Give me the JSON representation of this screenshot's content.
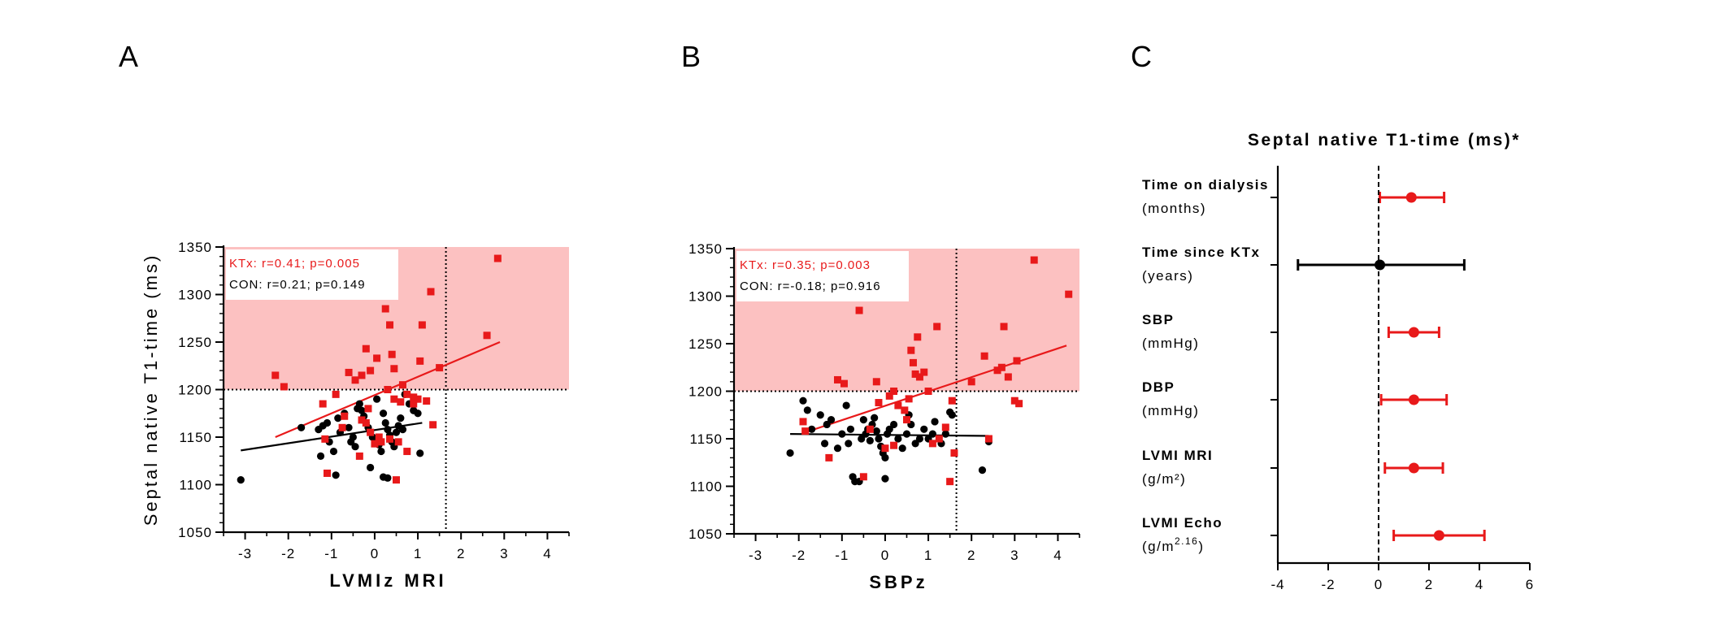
{
  "colors": {
    "ktx": "#e8191a",
    "con": "#000000",
    "shade": "#fcc1c1",
    "axis": "#000000"
  },
  "panels": {
    "a": "A",
    "b": "B",
    "c": "C"
  },
  "chart_data": [
    {
      "id": "A",
      "type": "scatter",
      "xlabel": "LVMIz MRI",
      "ylabel": "Septal native T1-time (ms)",
      "xlim": [
        -3.5,
        4.5
      ],
      "ylim": [
        1050,
        1350
      ],
      "xticks": [
        "-3",
        "-2",
        "-1",
        "0",
        "1",
        "2",
        "3",
        "4"
      ],
      "yticks": [
        "1050",
        "1100",
        "1150",
        "1200",
        "1250",
        "1300",
        "1350"
      ],
      "shaded_region": {
        "y_from": 1200,
        "y_to": 1350
      },
      "threshold_y": 1200,
      "threshold_x": 1.65,
      "legend": {
        "ktx": "KTx:   r=0.41; p=0.005",
        "con": "CON: r=0.21; p=0.149"
      },
      "series": [
        {
          "name": "KTx",
          "marker": "square",
          "points": [
            [
              -2.3,
              1215
            ],
            [
              -2.1,
              1203
            ],
            [
              -1.2,
              1185
            ],
            [
              -0.9,
              1195
            ],
            [
              -1.1,
              1112
            ],
            [
              -0.6,
              1218
            ],
            [
              -0.45,
              1210
            ],
            [
              -0.3,
              1215
            ],
            [
              -0.2,
              1243
            ],
            [
              -0.1,
              1220
            ],
            [
              0.05,
              1233
            ],
            [
              0.25,
              1285
            ],
            [
              0.35,
              1268
            ],
            [
              0.4,
              1237
            ],
            [
              0.45,
              1222
            ],
            [
              0.3,
              1200
            ],
            [
              0.45,
              1190
            ],
            [
              0.6,
              1187
            ],
            [
              0.65,
              1205
            ],
            [
              0.75,
              1195
            ],
            [
              0.9,
              1192
            ],
            [
              1.0,
              1190
            ],
            [
              1.05,
              1230
            ],
            [
              1.1,
              1268
            ],
            [
              1.3,
              1303
            ],
            [
              1.2,
              1188
            ],
            [
              1.5,
              1223
            ],
            [
              1.35,
              1163
            ],
            [
              2.6,
              1257
            ],
            [
              2.85,
              1338
            ],
            [
              -0.2,
              1165
            ],
            [
              -0.15,
              1180
            ],
            [
              0.1,
              1150
            ],
            [
              0.15,
              1145
            ],
            [
              0.35,
              1148
            ],
            [
              0.55,
              1145
            ],
            [
              0.75,
              1135
            ],
            [
              0.5,
              1105
            ],
            [
              -0.35,
              1130
            ],
            [
              -0.3,
              1168
            ],
            [
              -0.1,
              1155
            ],
            [
              0.0,
              1143
            ],
            [
              -0.7,
              1172
            ],
            [
              -0.75,
              1160
            ],
            [
              -1.15,
              1148
            ],
            [
              0.9,
              1185
            ]
          ],
          "fit": {
            "x": [
              -2.3,
              2.9
            ],
            "y": [
              1150,
              1250
            ]
          }
        },
        {
          "name": "CON",
          "marker": "circle",
          "points": [
            [
              -3.1,
              1105
            ],
            [
              -1.7,
              1160
            ],
            [
              -1.3,
              1158
            ],
            [
              -1.2,
              1162
            ],
            [
              -1.1,
              1165
            ],
            [
              -1.05,
              1145
            ],
            [
              -0.95,
              1135
            ],
            [
              -0.9,
              1110
            ],
            [
              -0.85,
              1170
            ],
            [
              -0.8,
              1155
            ],
            [
              -0.7,
              1175
            ],
            [
              -0.6,
              1160
            ],
            [
              -0.55,
              1145
            ],
            [
              -0.5,
              1150
            ],
            [
              -0.45,
              1140
            ],
            [
              -0.4,
              1180
            ],
            [
              -0.35,
              1185
            ],
            [
              -0.3,
              1178
            ],
            [
              -0.25,
              1172
            ],
            [
              -0.2,
              1165
            ],
            [
              -0.15,
              1160
            ],
            [
              -0.1,
              1155
            ],
            [
              -0.05,
              1150
            ],
            [
              0.0,
              1148
            ],
            [
              0.05,
              1190
            ],
            [
              0.1,
              1142
            ],
            [
              0.15,
              1135
            ],
            [
              0.2,
              1175
            ],
            [
              0.25,
              1165
            ],
            [
              0.3,
              1158
            ],
            [
              0.35,
              1152
            ],
            [
              0.4,
              1145
            ],
            [
              0.45,
              1140
            ],
            [
              0.5,
              1155
            ],
            [
              0.55,
              1162
            ],
            [
              0.6,
              1170
            ],
            [
              0.7,
              1195
            ],
            [
              0.8,
              1185
            ],
            [
              0.9,
              1178
            ],
            [
              1.0,
              1175
            ],
            [
              0.2,
              1108
            ],
            [
              0.3,
              1107
            ],
            [
              -0.1,
              1118
            ],
            [
              -1.25,
              1130
            ],
            [
              1.05,
              1133
            ],
            [
              0.65,
              1158
            ]
          ],
          "fit": {
            "x": [
              -3.1,
              1.1
            ],
            "y": [
              1136,
              1165
            ]
          }
        }
      ]
    },
    {
      "id": "B",
      "type": "scatter",
      "xlabel": "SBPz",
      "ylabel": "",
      "xlim": [
        -3.5,
        4.5
      ],
      "ylim": [
        1050,
        1350
      ],
      "xticks": [
        "-3",
        "-2",
        "-1",
        "0",
        "1",
        "2",
        "3",
        "4"
      ],
      "yticks": [
        "1050",
        "1100",
        "1150",
        "1200",
        "1250",
        "1300",
        "1350"
      ],
      "shaded_region": {
        "y_from": 1200,
        "y_to": 1350
      },
      "threshold_y": 1200,
      "threshold_x": 1.65,
      "legend": {
        "ktx": "KTx:   r=0.35; p=0.003",
        "con": "CON: r=-0.18; p=0.916"
      },
      "series": [
        {
          "name": "KTx",
          "marker": "square",
          "points": [
            [
              -1.9,
              1168
            ],
            [
              -1.85,
              1158
            ],
            [
              -1.1,
              1212
            ],
            [
              -0.95,
              1208
            ],
            [
              -0.6,
              1285
            ],
            [
              -0.2,
              1210
            ],
            [
              -0.15,
              1188
            ],
            [
              0.1,
              1195
            ],
            [
              0.2,
              1200
            ],
            [
              0.3,
              1185
            ],
            [
              0.45,
              1180
            ],
            [
              0.55,
              1192
            ],
            [
              0.6,
              1243
            ],
            [
              0.65,
              1230
            ],
            [
              0.7,
              1218
            ],
            [
              0.75,
              1257
            ],
            [
              0.8,
              1215
            ],
            [
              0.9,
              1220
            ],
            [
              1.0,
              1200
            ],
            [
              1.2,
              1268
            ],
            [
              1.4,
              1162
            ],
            [
              1.55,
              1190
            ],
            [
              1.6,
              1135
            ],
            [
              1.5,
              1105
            ],
            [
              2.0,
              1210
            ],
            [
              2.3,
              1237
            ],
            [
              2.6,
              1222
            ],
            [
              2.7,
              1225
            ],
            [
              2.75,
              1268
            ],
            [
              2.85,
              1215
            ],
            [
              3.0,
              1190
            ],
            [
              3.05,
              1232
            ],
            [
              3.1,
              1187
            ],
            [
              3.45,
              1338
            ],
            [
              4.25,
              1302
            ],
            [
              -1.3,
              1130
            ],
            [
              -0.5,
              1110
            ],
            [
              0.0,
              1140
            ],
            [
              0.2,
              1143
            ],
            [
              1.1,
              1145
            ],
            [
              1.25,
              1150
            ],
            [
              2.4,
              1150
            ],
            [
              -0.35,
              1160
            ],
            [
              0.5,
              1170
            ]
          ],
          "fit": {
            "x": [
              -1.9,
              4.2
            ],
            "y": [
              1156,
              1248
            ]
          }
        },
        {
          "name": "CON",
          "marker": "circle",
          "points": [
            [
              -2.2,
              1135
            ],
            [
              -1.9,
              1190
            ],
            [
              -1.8,
              1180
            ],
            [
              -1.7,
              1160
            ],
            [
              -1.5,
              1175
            ],
            [
              -1.4,
              1145
            ],
            [
              -1.35,
              1165
            ],
            [
              -1.25,
              1170
            ],
            [
              -1.1,
              1140
            ],
            [
              -1.0,
              1155
            ],
            [
              -0.9,
              1185
            ],
            [
              -0.85,
              1145
            ],
            [
              -0.8,
              1160
            ],
            [
              -0.75,
              1110
            ],
            [
              -0.7,
              1105
            ],
            [
              -0.6,
              1105
            ],
            [
              -0.55,
              1150
            ],
            [
              -0.5,
              1170
            ],
            [
              -0.45,
              1155
            ],
            [
              -0.4,
              1160
            ],
            [
              -0.35,
              1148
            ],
            [
              -0.3,
              1165
            ],
            [
              -0.25,
              1172
            ],
            [
              -0.2,
              1158
            ],
            [
              -0.15,
              1150
            ],
            [
              -0.1,
              1142
            ],
            [
              -0.05,
              1135
            ],
            [
              0.0,
              1130
            ],
            [
              0.05,
              1155
            ],
            [
              0.1,
              1160
            ],
            [
              0.2,
              1165
            ],
            [
              0.3,
              1150
            ],
            [
              0.4,
              1140
            ],
            [
              0.5,
              1155
            ],
            [
              0.55,
              1175
            ],
            [
              0.6,
              1165
            ],
            [
              0.7,
              1145
            ],
            [
              0.8,
              1150
            ],
            [
              0.9,
              1160
            ],
            [
              1.0,
              1150
            ],
            [
              1.1,
              1155
            ],
            [
              1.15,
              1168
            ],
            [
              1.3,
              1145
            ],
            [
              1.4,
              1155
            ],
            [
              1.5,
              1178
            ],
            [
              1.55,
              1175
            ],
            [
              0.0,
              1108
            ],
            [
              2.25,
              1117
            ],
            [
              2.4,
              1147
            ]
          ],
          "fit": {
            "x": [
              -2.2,
              2.4
            ],
            "y": [
              1155,
              1153
            ]
          }
        }
      ]
    },
    {
      "id": "C",
      "type": "forest",
      "title": "Septal native T1-time (ms)*",
      "xlim": [
        -4,
        6
      ],
      "xticks": [
        "-4",
        "-2",
        "0",
        "2",
        "4",
        "6"
      ],
      "reference_x": 0,
      "rows": [
        {
          "label": "Time on dialysis",
          "unit": "(months)",
          "estimate": 1.3,
          "lower": 0.05,
          "upper": 2.6,
          "color": "ktx"
        },
        {
          "label": "Time since KTx",
          "unit": "(years)",
          "estimate": 0.05,
          "lower": -3.2,
          "upper": 3.4,
          "color": "con"
        },
        {
          "label": "SBP",
          "unit": "(mmHg)",
          "estimate": 1.4,
          "lower": 0.4,
          "upper": 2.4,
          "color": "ktx"
        },
        {
          "label": "DBP",
          "unit": "(mmHg)",
          "estimate": 1.4,
          "lower": 0.1,
          "upper": 2.7,
          "color": "ktx"
        },
        {
          "label": "LVMI MRI",
          "unit": "(g/m²)",
          "estimate": 1.4,
          "lower": 0.25,
          "upper": 2.55,
          "color": "ktx"
        },
        {
          "label": "LVMI Echo",
          "unit": "(g/m",
          "unit_sup": "2.16",
          "unit_end": ")",
          "estimate": 2.4,
          "lower": 0.6,
          "upper": 4.2,
          "color": "ktx"
        }
      ]
    }
  ]
}
